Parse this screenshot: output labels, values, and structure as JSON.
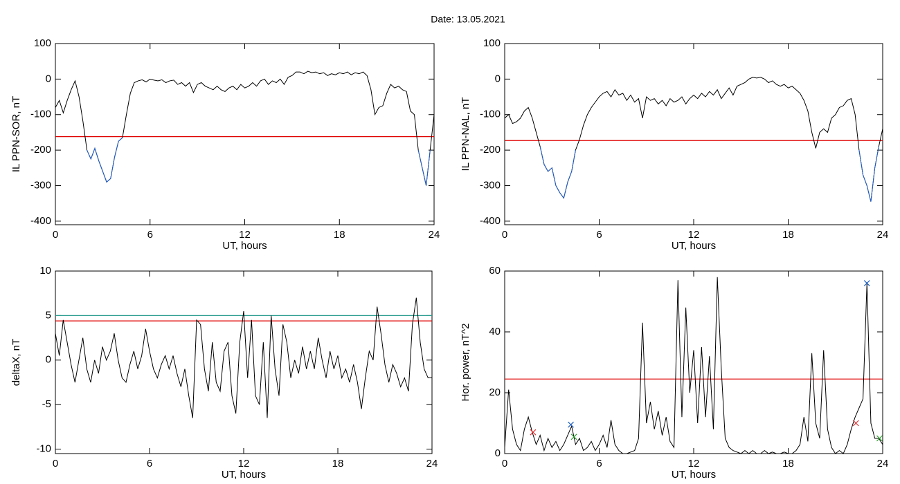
{
  "title": "Date:  13.05.2021",
  "chart_data": [
    {
      "type": "line",
      "xlabel": "UT, hours",
      "ylabel": "IL PPN-SOR, nT",
      "xlim": [
        0,
        24
      ],
      "xticks": [
        0,
        6,
        12,
        18,
        24
      ],
      "ylim": [
        -410,
        100
      ],
      "yticks": [
        100,
        0,
        -100,
        -200,
        -300,
        -400
      ],
      "color": "#000000",
      "below_color": "#1f5fcf",
      "thresholds": [
        {
          "value": -162,
          "color": "#e00000"
        }
      ],
      "x": [
        0,
        0.25,
        0.5,
        0.75,
        1,
        1.25,
        1.5,
        1.75,
        2,
        2.25,
        2.5,
        2.75,
        3,
        3.25,
        3.5,
        3.75,
        4,
        4.25,
        4.5,
        4.75,
        5,
        5.25,
        5.5,
        5.75,
        6,
        6.25,
        6.5,
        6.75,
        7,
        7.25,
        7.5,
        7.75,
        8,
        8.25,
        8.5,
        8.75,
        9,
        9.25,
        9.5,
        9.75,
        10,
        10.25,
        10.5,
        10.75,
        11,
        11.25,
        11.5,
        11.75,
        12,
        12.25,
        12.5,
        12.75,
        13,
        13.25,
        13.5,
        13.75,
        14,
        14.25,
        14.5,
        14.75,
        15,
        15.25,
        15.5,
        15.75,
        16,
        16.25,
        16.5,
        16.75,
        17,
        17.25,
        17.5,
        17.75,
        18,
        18.25,
        18.5,
        18.75,
        19,
        19.25,
        19.5,
        19.75,
        20,
        20.25,
        20.5,
        20.75,
        21,
        21.25,
        21.5,
        21.75,
        22,
        22.25,
        22.5,
        22.75,
        23,
        23.25,
        23.5,
        23.75,
        24
      ],
      "values": [
        -80,
        -60,
        -95,
        -60,
        -30,
        -5,
        -50,
        -120,
        -200,
        -225,
        -195,
        -230,
        -260,
        -290,
        -280,
        -220,
        -175,
        -165,
        -100,
        -40,
        -10,
        -5,
        -2,
        -8,
        0,
        -3,
        -5,
        -2,
        -10,
        -5,
        -3,
        -15,
        -10,
        -20,
        -10,
        -38,
        -15,
        -10,
        -20,
        -25,
        -30,
        -20,
        -30,
        -35,
        -25,
        -20,
        -30,
        -15,
        -25,
        -20,
        -10,
        -20,
        -5,
        0,
        -15,
        -5,
        -10,
        0,
        -15,
        5,
        10,
        20,
        20,
        15,
        22,
        18,
        20,
        15,
        18,
        10,
        15,
        12,
        18,
        15,
        20,
        12,
        18,
        15,
        20,
        10,
        -30,
        -100,
        -80,
        -75,
        -40,
        -15,
        -25,
        -20,
        -30,
        -35,
        -90,
        -100,
        -200,
        -250,
        -300,
        -200,
        -100
      ]
    },
    {
      "type": "line",
      "xlabel": "UT, hours",
      "ylabel": "IL PPN-NAL, nT",
      "xlim": [
        0,
        24
      ],
      "xticks": [
        0,
        6,
        12,
        18,
        24
      ],
      "ylim": [
        -410,
        100
      ],
      "yticks": [
        100,
        0,
        -100,
        -200,
        -300,
        -400
      ],
      "color": "#000000",
      "below_color": "#1f5fcf",
      "thresholds": [
        {
          "value": -173,
          "color": "#e00000"
        }
      ],
      "x": [
        0,
        0.25,
        0.5,
        0.75,
        1,
        1.25,
        1.5,
        1.75,
        2,
        2.25,
        2.5,
        2.75,
        3,
        3.25,
        3.5,
        3.75,
        4,
        4.25,
        4.5,
        4.75,
        5,
        5.25,
        5.5,
        5.75,
        6,
        6.25,
        6.5,
        6.75,
        7,
        7.25,
        7.5,
        7.75,
        8,
        8.25,
        8.5,
        8.75,
        9,
        9.25,
        9.5,
        9.75,
        10,
        10.25,
        10.5,
        10.75,
        11,
        11.25,
        11.5,
        11.75,
        12,
        12.25,
        12.5,
        12.75,
        13,
        13.25,
        13.5,
        13.75,
        14,
        14.25,
        14.5,
        14.75,
        15,
        15.25,
        15.5,
        15.75,
        16,
        16.25,
        16.5,
        16.75,
        17,
        17.25,
        17.5,
        17.75,
        18,
        18.25,
        18.5,
        18.75,
        19,
        19.25,
        19.5,
        19.75,
        20,
        20.25,
        20.5,
        20.75,
        21,
        21.25,
        21.5,
        21.75,
        22,
        22.25,
        22.5,
        22.75,
        23,
        23.25,
        23.5,
        23.75,
        24
      ],
      "values": [
        -110,
        -100,
        -125,
        -120,
        -110,
        -90,
        -80,
        -110,
        -150,
        -190,
        -240,
        -260,
        -250,
        -300,
        -320,
        -335,
        -290,
        -260,
        -200,
        -170,
        -130,
        -100,
        -80,
        -65,
        -50,
        -40,
        -35,
        -50,
        -30,
        -45,
        -40,
        -60,
        -45,
        -65,
        -55,
        -110,
        -50,
        -60,
        -55,
        -70,
        -60,
        -75,
        -55,
        -65,
        -60,
        -50,
        -70,
        -55,
        -45,
        -55,
        -40,
        -50,
        -35,
        -45,
        -30,
        -55,
        -40,
        -25,
        -45,
        -20,
        -15,
        -10,
        0,
        5,
        3,
        5,
        0,
        -10,
        -5,
        -15,
        -20,
        -15,
        -25,
        -20,
        -30,
        -40,
        -60,
        -90,
        -150,
        -195,
        -150,
        -140,
        -150,
        -110,
        -100,
        -80,
        -75,
        -60,
        -55,
        -100,
        -200,
        -270,
        -300,
        -345,
        -250,
        -190,
        -140
      ]
    },
    {
      "type": "line",
      "xlabel": "UT, hours",
      "ylabel": "deltaX, nT",
      "xlim": [
        0,
        24
      ],
      "xticks": [
        0,
        6,
        12,
        18,
        24
      ],
      "ylim": [
        -10.5,
        10
      ],
      "yticks": [
        10,
        5,
        0,
        -5,
        -10
      ],
      "color": "#000000",
      "thresholds": [
        {
          "value": 5,
          "color": "#2a9d8f"
        },
        {
          "value": 4.4,
          "color": "#e00000"
        }
      ],
      "x": [
        0,
        0.25,
        0.5,
        0.75,
        1,
        1.25,
        1.5,
        1.75,
        2,
        2.25,
        2.5,
        2.75,
        3,
        3.25,
        3.5,
        3.75,
        4,
        4.25,
        4.5,
        4.75,
        5,
        5.25,
        5.5,
        5.75,
        6,
        6.25,
        6.5,
        6.75,
        7,
        7.25,
        7.5,
        7.75,
        8,
        8.25,
        8.5,
        8.75,
        9,
        9.25,
        9.5,
        9.75,
        10,
        10.25,
        10.5,
        10.75,
        11,
        11.25,
        11.5,
        11.75,
        12,
        12.25,
        12.5,
        12.75,
        13,
        13.25,
        13.5,
        13.75,
        14,
        14.25,
        14.5,
        14.75,
        15,
        15.25,
        15.5,
        15.75,
        16,
        16.25,
        16.5,
        16.75,
        17,
        17.25,
        17.5,
        17.75,
        18,
        18.25,
        18.5,
        18.75,
        19,
        19.25,
        19.5,
        19.75,
        20,
        20.25,
        20.5,
        20.75,
        21,
        21.25,
        21.5,
        21.75,
        22,
        22.25,
        22.5,
        22.75,
        23,
        23.25,
        23.5,
        23.75,
        24
      ],
      "values": [
        3,
        0.5,
        4.5,
        2,
        -0.5,
        -2.5,
        0,
        2.5,
        -1,
        -2.5,
        0,
        -1.5,
        1.5,
        0,
        1,
        3,
        0,
        -2,
        -2.5,
        -0.5,
        1,
        -1,
        0.5,
        3.5,
        1,
        -1,
        -2,
        -0.5,
        0.5,
        -1,
        0.5,
        -1.5,
        -3,
        -1,
        -4,
        -6.5,
        4.5,
        4,
        -1,
        -3.5,
        2,
        -2.5,
        -3.5,
        1,
        2,
        -4,
        -6,
        2,
        5.5,
        -2,
        4.5,
        -4,
        -5,
        2,
        -6.5,
        5,
        -1,
        -4,
        4,
        2,
        -2,
        0,
        -1.5,
        1.5,
        -1,
        1,
        -1,
        2.5,
        0,
        -2,
        1,
        -1,
        0.5,
        -2,
        -1,
        -2.5,
        -0.5,
        -2.5,
        -5.5,
        -2,
        1,
        0,
        6,
        3,
        -0.5,
        -2.5,
        -0.5,
        -1.5,
        -3,
        -2,
        -3.5,
        4,
        7,
        2,
        -1,
        -2,
        -2
      ]
    },
    {
      "type": "line",
      "xlabel": "UT, hours",
      "ylabel": "Hor. power, nT^2",
      "xlim": [
        0,
        24
      ],
      "xticks": [
        0,
        6,
        12,
        18,
        24
      ],
      "ylim": [
        0,
        60
      ],
      "yticks": [
        0,
        20,
        40,
        60
      ],
      "color": "#000000",
      "thresholds": [
        {
          "value": 24.5,
          "color": "#e00000"
        }
      ],
      "markers": [
        {
          "x": 1.8,
          "y": 7,
          "color": "#e03030"
        },
        {
          "x": 4.2,
          "y": 9.5,
          "color": "#2060c0"
        },
        {
          "x": 4.4,
          "y": 5.5,
          "color": "#30a030"
        },
        {
          "x": 22.3,
          "y": 10,
          "color": "#e03030"
        },
        {
          "x": 23.0,
          "y": 56,
          "color": "#2060c0"
        },
        {
          "x": 23.8,
          "y": 5,
          "color": "#30a030"
        }
      ],
      "x": [
        0,
        0.25,
        0.5,
        0.75,
        1,
        1.25,
        1.5,
        1.75,
        2,
        2.25,
        2.5,
        2.75,
        3,
        3.25,
        3.5,
        3.75,
        4,
        4.25,
        4.5,
        4.75,
        5,
        5.25,
        5.5,
        5.75,
        6,
        6.25,
        6.5,
        6.75,
        7,
        7.25,
        7.5,
        7.75,
        8,
        8.25,
        8.5,
        8.75,
        9,
        9.25,
        9.5,
        9.75,
        10,
        10.25,
        10.5,
        10.75,
        11,
        11.25,
        11.5,
        11.75,
        12,
        12.25,
        12.5,
        12.75,
        13,
        13.25,
        13.5,
        13.75,
        14,
        14.25,
        14.5,
        14.75,
        15,
        15.25,
        15.5,
        15.75,
        16,
        16.25,
        16.5,
        16.75,
        17,
        17.25,
        17.5,
        17.75,
        18,
        18.25,
        18.5,
        18.75,
        19,
        19.25,
        19.5,
        19.75,
        20,
        20.25,
        20.5,
        20.75,
        21,
        21.25,
        21.5,
        21.75,
        22,
        22.25,
        22.5,
        22.75,
        23,
        23.25,
        23.5,
        23.75,
        24
      ],
      "values": [
        2,
        21,
        8,
        3,
        1,
        8,
        12,
        7,
        3,
        6,
        1,
        5,
        2,
        4,
        1,
        3,
        6,
        9,
        3,
        5,
        1,
        2,
        4,
        1,
        3,
        6,
        2,
        11,
        3,
        1,
        0,
        0,
        0.5,
        1,
        5,
        43,
        10,
        17,
        8,
        14,
        6,
        12,
        4,
        2,
        57,
        12,
        48,
        20,
        34,
        10,
        35,
        12,
        32,
        8,
        58,
        28,
        5,
        2,
        1,
        0.5,
        0,
        1,
        0,
        1,
        0,
        0,
        1,
        0,
        0.5,
        0,
        0,
        0.5,
        0,
        0,
        1,
        3,
        12,
        4,
        33,
        10,
        5,
        34,
        8,
        2,
        0,
        1,
        0,
        3,
        8,
        12,
        15,
        18,
        56,
        10,
        5,
        5,
        3
      ]
    }
  ]
}
